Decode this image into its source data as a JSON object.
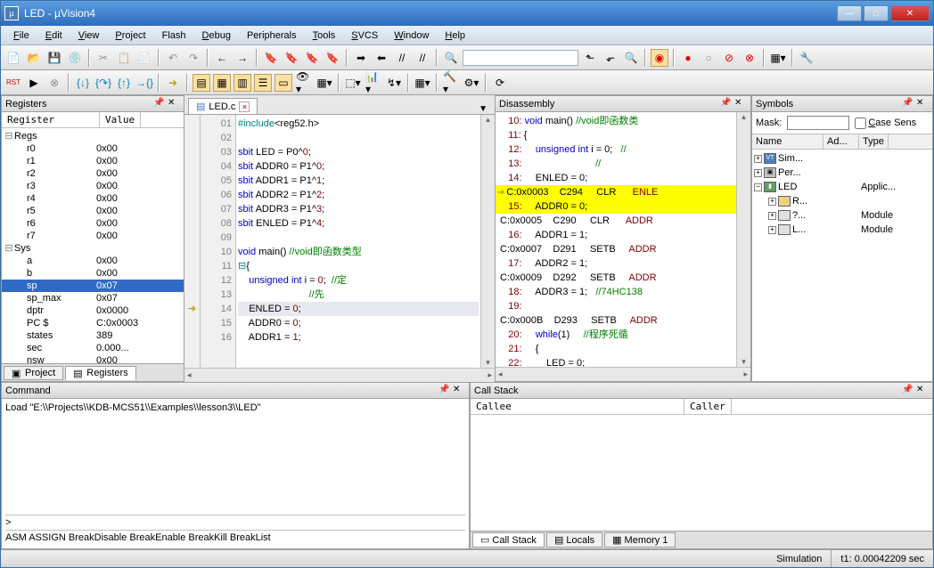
{
  "window": {
    "title": "LED  - µVision4"
  },
  "menu": [
    "File",
    "Edit",
    "View",
    "Project",
    "Flash",
    "Debug",
    "Peripherals",
    "Tools",
    "SVCS",
    "Window",
    "Help"
  ],
  "registers_panel": {
    "title": "Registers",
    "columns": [
      "Register",
      "Value"
    ],
    "rows": [
      {
        "indent": 0,
        "tree": "⊟",
        "name": "Regs",
        "val": ""
      },
      {
        "indent": 1,
        "tree": "",
        "name": "r0",
        "val": "0x00"
      },
      {
        "indent": 1,
        "tree": "",
        "name": "r1",
        "val": "0x00"
      },
      {
        "indent": 1,
        "tree": "",
        "name": "r2",
        "val": "0x00"
      },
      {
        "indent": 1,
        "tree": "",
        "name": "r3",
        "val": "0x00"
      },
      {
        "indent": 1,
        "tree": "",
        "name": "r4",
        "val": "0x00"
      },
      {
        "indent": 1,
        "tree": "",
        "name": "r5",
        "val": "0x00"
      },
      {
        "indent": 1,
        "tree": "",
        "name": "r6",
        "val": "0x00"
      },
      {
        "indent": 1,
        "tree": "",
        "name": "r7",
        "val": "0x00"
      },
      {
        "indent": 0,
        "tree": "⊟",
        "name": "Sys",
        "val": ""
      },
      {
        "indent": 1,
        "tree": "",
        "name": "a",
        "val": "0x00"
      },
      {
        "indent": 1,
        "tree": "",
        "name": "b",
        "val": "0x00"
      },
      {
        "indent": 1,
        "tree": "",
        "name": "sp",
        "val": "0x07",
        "sel": true
      },
      {
        "indent": 1,
        "tree": "",
        "name": "sp_max",
        "val": "0x07"
      },
      {
        "indent": 1,
        "tree": "",
        "name": "dptr",
        "val": "0x0000"
      },
      {
        "indent": 1,
        "tree": "",
        "name": "PC  $",
        "val": "C:0x0003"
      },
      {
        "indent": 1,
        "tree": "",
        "name": "states",
        "val": "389"
      },
      {
        "indent": 1,
        "tree": "",
        "name": "sec",
        "val": "0.000..."
      },
      {
        "indent": 1,
        "tree": "",
        "name": "nsw",
        "val": "0x00"
      }
    ],
    "tabs": [
      "Project",
      "Registers"
    ],
    "active_tab": 1
  },
  "editor": {
    "filename": "LED.c",
    "lines": [
      {
        "n": "01",
        "mark": "",
        "html": "<span class='pp'>#include</span>&lt;reg52.h&gt;"
      },
      {
        "n": "02",
        "mark": "",
        "html": ""
      },
      {
        "n": "03",
        "mark": "",
        "html": "<span class='kw'>sbit</span> LED = P0^<span class='num'>0</span>;"
      },
      {
        "n": "04",
        "mark": "",
        "html": "<span class='kw'>sbit</span> ADDR0 = P1^<span class='num'>0</span>;"
      },
      {
        "n": "05",
        "mark": "",
        "html": "<span class='kw'>sbit</span> ADDR1 = P1^<span class='num'>1</span>;"
      },
      {
        "n": "06",
        "mark": "",
        "html": "<span class='kw'>sbit</span> ADDR2 = P1^<span class='num'>2</span>;"
      },
      {
        "n": "07",
        "mark": "",
        "html": "<span class='kw'>sbit</span> ADDR3 = P1^<span class='num'>3</span>;"
      },
      {
        "n": "08",
        "mark": "",
        "html": "<span class='kw'>sbit</span> ENLED = P1^<span class='num'>4</span>;"
      },
      {
        "n": "09",
        "mark": "",
        "html": ""
      },
      {
        "n": "10",
        "mark": "",
        "html": "<span class='kw'>void</span> main() <span class='cm'>//void即函数类型</span>"
      },
      {
        "n": "11",
        "mark": "",
        "html": "<span class='pp'>⊟</span>{"
      },
      {
        "n": "12",
        "mark": "",
        "html": "    <span class='kw'>unsigned int</span> i = <span class='num'>0</span>;  <span class='cm'>//定</span>"
      },
      {
        "n": "13",
        "mark": "",
        "html": "                          <span class='cm'>//先</span>"
      },
      {
        "n": "14",
        "mark": "➜",
        "html": "    ENLED = <span class='num'>0</span>;",
        "hl": true
      },
      {
        "n": "15",
        "mark": "",
        "html": "    ADDR0 = <span class='num'>0</span>;"
      },
      {
        "n": "16",
        "mark": "",
        "html": "    ADDR1 = <span class='num'>1</span>;"
      }
    ]
  },
  "disassembly": {
    "title": "Disassembly",
    "lines": [
      {
        "html": "    <span class='ln'>10:</span> <span class='kw' style='color:#0000d0'>void</span> main() <span class='cmt'>//void即函数类</span>"
      },
      {
        "html": "    <span class='ln'>11:</span> {"
      },
      {
        "html": "    <span class='ln'>12:</span>     <span style='color:#0000d0'>unsigned int</span> i = 0;   <span class='cmt'>//</span>"
      },
      {
        "html": "    <span class='ln'>13:</span>                           <span class='cmt'>//</span>"
      },
      {
        "html": "    <span class='ln'>14:</span>     ENLED = 0;"
      },
      {
        "arrow": true,
        "hl": true,
        "html": "C:0x0003    C294     CLR      <span class='sym'>ENLE</span>"
      },
      {
        "hl": true,
        "html": "    <span class='ln'>15:</span>     ADDR0 = 0;"
      },
      {
        "html": " C:0x0005    C290     CLR      <span class='sym'>ADDR</span>"
      },
      {
        "html": "    <span class='ln'>16:</span>     ADDR1 = 1;"
      },
      {
        "html": " C:0x0007    D291     SETB     <span class='sym'>ADDR</span>"
      },
      {
        "html": "    <span class='ln'>17:</span>     ADDR2 = 1;"
      },
      {
        "html": " C:0x0009    D292     SETB     <span class='sym'>ADDR</span>"
      },
      {
        "html": "    <span class='ln'>18:</span>     ADDR3 = 1;   <span class='cmt'>//74HC138</span>"
      },
      {
        "html": "    <span class='ln'>19:</span>"
      },
      {
        "html": " C:0x000B    D293     SETB     <span class='sym'>ADDR</span>"
      },
      {
        "html": "    <span class='ln'>20:</span>     <span style='color:#0000d0'>while</span>(1)     <span class='cmt'>//程序死循</span>"
      },
      {
        "html": "    <span class='ln'>21:</span>     {"
      },
      {
        "html": "    <span class='ln'>22:</span>         LED = 0;"
      }
    ]
  },
  "symbols": {
    "title": "Symbols",
    "mask_label": "Mask:",
    "case_label": "Case Sens",
    "columns": [
      "Name",
      "Ad...",
      "Type"
    ],
    "rows": [
      {
        "ind": 0,
        "box": "+",
        "ico": "vt",
        "ico_txt": "VT",
        "name": "Sim...",
        "type": ""
      },
      {
        "ind": 0,
        "box": "+",
        "ico": "pe",
        "ico_txt": "▣",
        "name": "Per...",
        "type": ""
      },
      {
        "ind": 0,
        "box": "−",
        "ico": "led",
        "ico_txt": "▮",
        "name": "LED",
        "type": "Applic..."
      },
      {
        "ind": 1,
        "box": "+",
        "ico": "fold",
        "ico_txt": "",
        "name": "R...",
        "type": ""
      },
      {
        "ind": 1,
        "box": "+",
        "ico": "mod",
        "ico_txt": "",
        "name": "?...",
        "type": "Module"
      },
      {
        "ind": 1,
        "box": "+",
        "ico": "mod",
        "ico_txt": "",
        "name": "L...",
        "type": "Module"
      }
    ]
  },
  "command": {
    "title": "Command",
    "load": "Load \"E:\\\\Projects\\\\KDB-MCS51\\\\Examples\\\\lesson3\\\\LED\"",
    "prompt": ">",
    "hint": "ASM ASSIGN BreakDisable BreakEnable BreakKill BreakList"
  },
  "callstack": {
    "title": "Call Stack",
    "columns": [
      "Callee",
      "Caller"
    ],
    "tabs": [
      "Call Stack",
      "Locals",
      "Memory 1"
    ],
    "active_tab": 0
  },
  "statusbar": {
    "sim": "Simulation",
    "time": "t1: 0.00042209 sec"
  },
  "colors": {
    "highlight_yellow": "#ffff00",
    "selection_blue": "#316ac5",
    "keyword": "#0000d0",
    "comment": "#008000",
    "number": "#800000",
    "title_gradient_top": "#5a9fe0",
    "title_gradient_bottom": "#2f6bbf"
  }
}
